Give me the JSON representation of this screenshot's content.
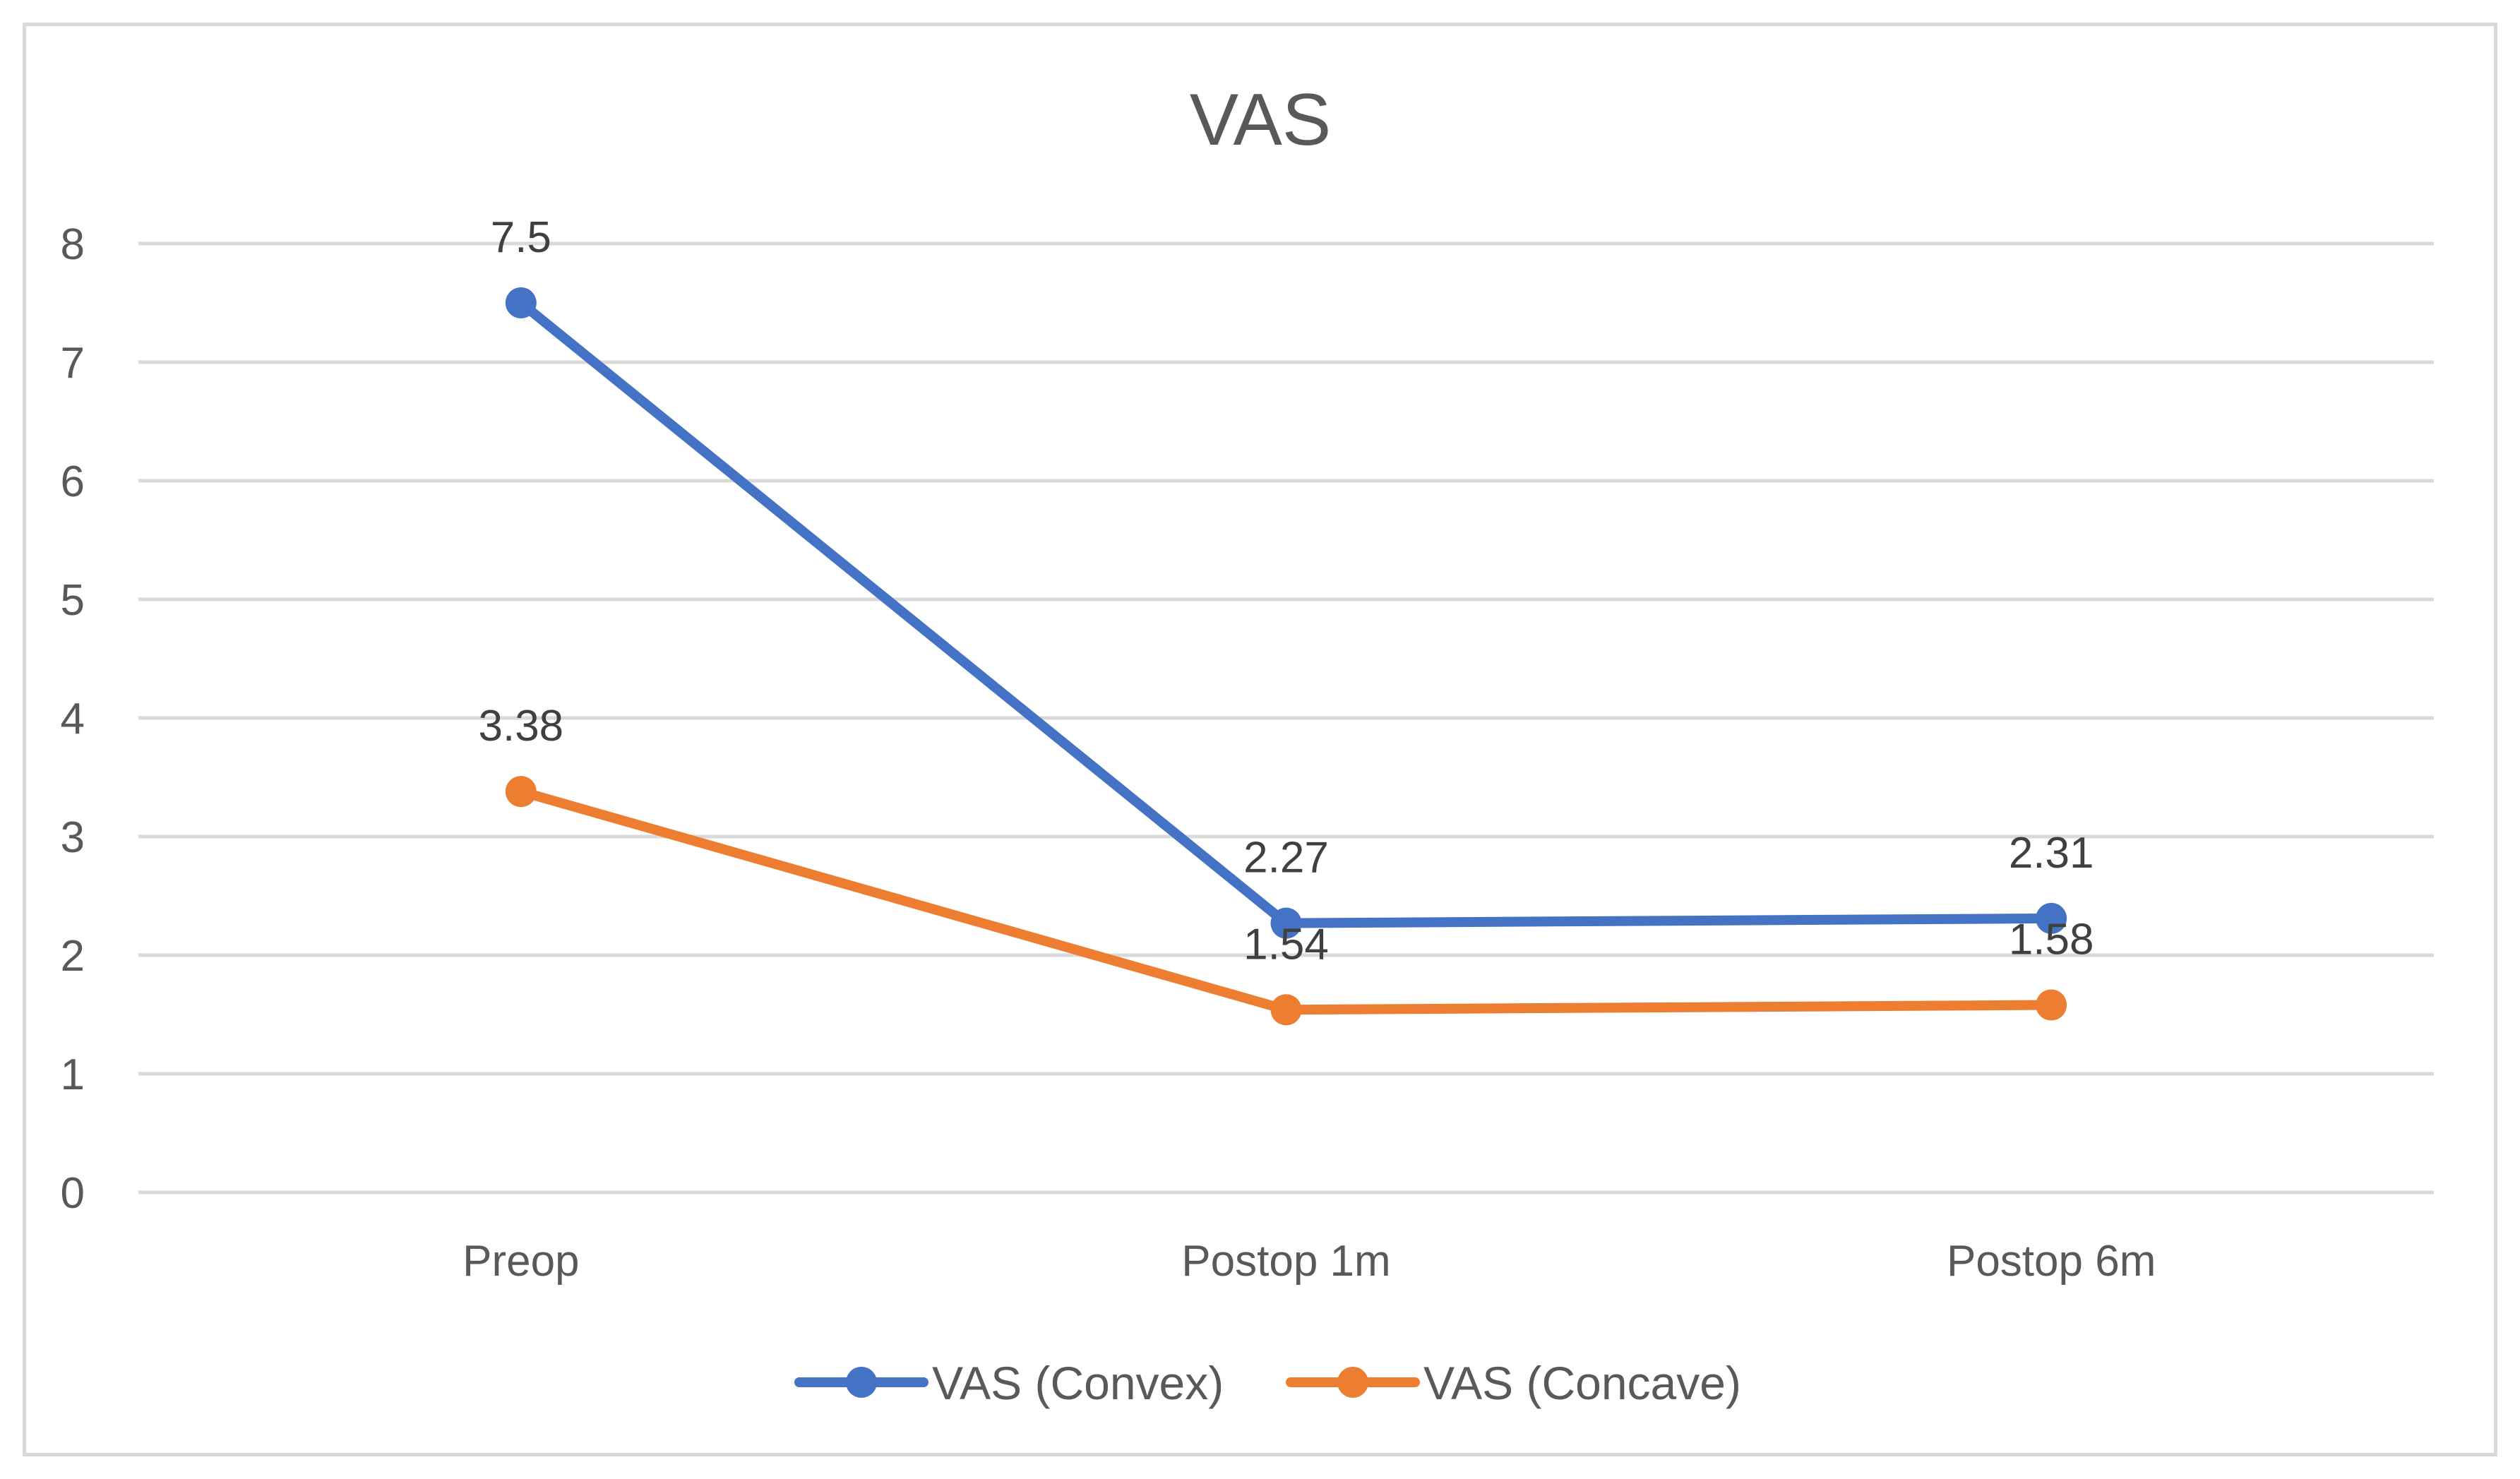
{
  "chart_data": {
    "type": "line",
    "title": "VAS",
    "xlabel": "",
    "ylabel": "",
    "categories": [
      "Preop",
      "Postop 1m",
      "Postop 6m"
    ],
    "ylim": [
      0,
      8
    ],
    "yticks": [
      0,
      1,
      2,
      3,
      4,
      5,
      6,
      7,
      8
    ],
    "grid": true,
    "legend_position": "bottom",
    "series": [
      {
        "name": "VAS (Convex)",
        "color": "#4472c4",
        "values": [
          7.5,
          2.27,
          2.31
        ],
        "data_labels": [
          "7.5",
          "2.27",
          "2.31"
        ]
      },
      {
        "name": "VAS (Concave)",
        "color": "#ed7d31",
        "values": [
          3.38,
          1.54,
          1.58
        ],
        "data_labels": [
          "3.38",
          "1.54",
          "1.58"
        ]
      }
    ]
  }
}
